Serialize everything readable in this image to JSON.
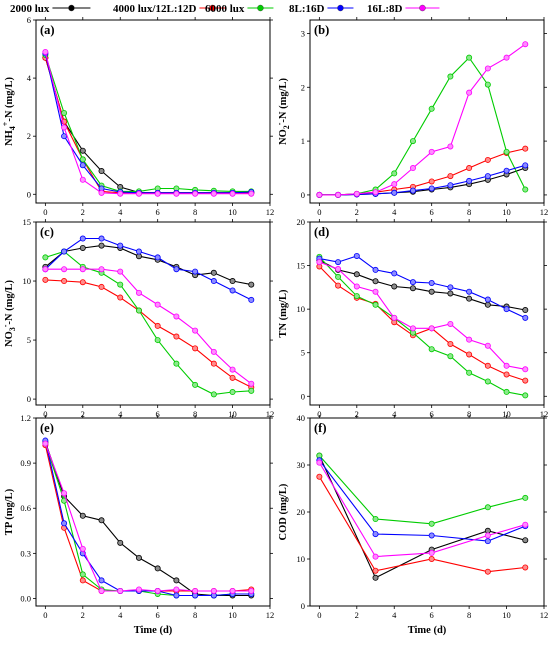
{
  "legend": [
    {
      "name": "2000 lux",
      "color": "#000000"
    },
    {
      "name": "4000 lux/12L:12D",
      "color": "#ff0000"
    },
    {
      "name": "6000 lux",
      "color": "#00cc00"
    },
    {
      "name": "8L:16D",
      "color": "#0000ff"
    },
    {
      "name": "16L:8D",
      "color": "#ff00ff"
    }
  ],
  "colors": [
    "#000000",
    "#ff0000",
    "#00cc00",
    "#0000ff",
    "#ff00ff"
  ],
  "chart_data": [
    {
      "panel": "(a)",
      "type": "line",
      "ylabel_main": "NH",
      "ylabel_sub": "4",
      "ylabel_sup": "+",
      "ylabel_rest": "-N (mg/L)",
      "xlim": [
        -0.5,
        12
      ],
      "ylim": [
        -0.3,
        6
      ],
      "xticks": [
        0,
        2,
        4,
        6,
        8,
        10,
        12
      ],
      "yticks": [
        0,
        2,
        4,
        6
      ],
      "x": [
        0,
        1,
        2,
        3,
        4,
        5,
        6,
        7,
        8,
        9,
        10,
        11
      ],
      "series": [
        {
          "values": [
            4.7,
            2.5,
            1.5,
            0.8,
            0.25,
            0.06,
            0.05,
            0.05,
            0.05,
            0.05,
            0.05,
            0.05
          ]
        },
        {
          "values": [
            4.7,
            2.5,
            1.2,
            0.1,
            0.05,
            0.05,
            0.05,
            0.05,
            0.05,
            0.05,
            0.05,
            0.05
          ]
        },
        {
          "values": [
            4.8,
            2.8,
            1.2,
            0.3,
            0.1,
            0.1,
            0.2,
            0.2,
            0.15,
            0.12,
            0.1,
            0.1
          ]
        },
        {
          "values": [
            4.85,
            2.0,
            1.0,
            0.2,
            0.08,
            0.05,
            0.05,
            0.05,
            0.05,
            0.05,
            0.05,
            0.08
          ]
        },
        {
          "values": [
            4.9,
            2.3,
            0.5,
            0.05,
            0.02,
            0.02,
            0.02,
            0.02,
            0.02,
            0.02,
            0.02,
            0.02
          ]
        }
      ]
    },
    {
      "panel": "(b)",
      "type": "line",
      "ylabel_main": "NO",
      "ylabel_sub": "2",
      "ylabel_sup": "-",
      "ylabel_rest": "-N (mg/L)",
      "xlim": [
        -0.5,
        12
      ],
      "ylim": [
        -0.15,
        3.25
      ],
      "xticks": [
        0,
        2,
        4,
        6,
        8,
        10,
        12
      ],
      "yticks": [
        0,
        1,
        2,
        3
      ],
      "x": [
        0,
        1,
        2,
        3,
        4,
        5,
        6,
        7,
        8,
        9,
        10,
        11
      ],
      "series": [
        {
          "values": [
            0,
            0,
            0.01,
            0.02,
            0.04,
            0.06,
            0.1,
            0.14,
            0.2,
            0.28,
            0.38,
            0.5
          ]
        },
        {
          "values": [
            0,
            0,
            0.02,
            0.05,
            0.1,
            0.15,
            0.25,
            0.35,
            0.5,
            0.65,
            0.78,
            0.86
          ]
        },
        {
          "values": [
            0,
            0,
            0.02,
            0.1,
            0.4,
            1.0,
            1.6,
            2.2,
            2.55,
            2.05,
            0.8,
            0.1
          ]
        },
        {
          "values": [
            0,
            0,
            0.01,
            0.02,
            0.04,
            0.08,
            0.12,
            0.18,
            0.26,
            0.35,
            0.45,
            0.55
          ]
        },
        {
          "values": [
            0,
            0,
            0.02,
            0.05,
            0.2,
            0.5,
            0.8,
            0.9,
            1.9,
            2.35,
            2.55,
            2.8
          ]
        }
      ]
    },
    {
      "panel": "(c)",
      "type": "line",
      "ylabel_main": "NO",
      "ylabel_sub": "3",
      "ylabel_sup": "-",
      "ylabel_rest": "-N (mg/L)",
      "xlim": [
        -0.5,
        12
      ],
      "ylim": [
        -0.5,
        15
      ],
      "xticks": [
        0,
        2,
        4,
        6,
        8,
        10,
        12
      ],
      "yticks": [
        0,
        5,
        10,
        15
      ],
      "x": [
        0,
        1,
        2,
        3,
        4,
        5,
        6,
        7,
        8,
        9,
        10,
        11
      ],
      "series": [
        {
          "values": [
            11.2,
            12.5,
            12.8,
            13.0,
            12.8,
            12.1,
            11.8,
            11.2,
            10.5,
            10.7,
            10.0,
            9.7
          ]
        },
        {
          "values": [
            10.1,
            10.0,
            9.9,
            9.5,
            8.6,
            7.5,
            6.2,
            5.3,
            4.3,
            3.0,
            1.8,
            1.0
          ]
        },
        {
          "values": [
            12.0,
            12.5,
            11.2,
            10.7,
            9.7,
            7.5,
            5.0,
            3.0,
            1.2,
            0.4,
            0.6,
            0.7
          ]
        },
        {
          "values": [
            11.0,
            12.5,
            13.6,
            13.6,
            13.0,
            12.5,
            12.0,
            11.0,
            10.8,
            10.0,
            9.2,
            8.4
          ]
        },
        {
          "values": [
            11.0,
            11.0,
            11.0,
            11.0,
            10.8,
            9.0,
            8.0,
            7.0,
            5.8,
            4.0,
            2.5,
            1.3
          ]
        }
      ]
    },
    {
      "panel": "(d)",
      "type": "line",
      "ylabel_main": "TN (mg/L)",
      "xlim": [
        -0.5,
        12
      ],
      "ylim": [
        -1,
        20
      ],
      "xticks": [
        0,
        2,
        4,
        6,
        8,
        10,
        12
      ],
      "yticks": [
        0,
        5,
        10,
        15,
        20
      ],
      "x": [
        0,
        1,
        2,
        3,
        4,
        5,
        6,
        7,
        8,
        9,
        10,
        11
      ],
      "series": [
        {
          "values": [
            15.6,
            14.5,
            14.0,
            13.2,
            12.6,
            12.4,
            12.0,
            11.8,
            11.2,
            10.5,
            10.3,
            9.9
          ]
        },
        {
          "values": [
            14.9,
            12.7,
            11.3,
            10.6,
            8.5,
            7.0,
            7.8,
            6.0,
            4.8,
            3.5,
            2.5,
            1.8
          ]
        },
        {
          "values": [
            16.0,
            13.7,
            11.5,
            10.5,
            9.0,
            7.3,
            5.4,
            4.6,
            2.7,
            1.7,
            0.5,
            0.1
          ]
        },
        {
          "values": [
            15.8,
            15.4,
            16.1,
            14.5,
            14.1,
            13.1,
            13.0,
            12.5,
            12.0,
            11.1,
            10.0,
            9.0
          ]
        },
        {
          "values": [
            15.4,
            14.6,
            12.6,
            12.0,
            9.0,
            7.8,
            7.8,
            8.3,
            6.5,
            5.8,
            3.5,
            3.1
          ]
        }
      ]
    },
    {
      "panel": "(e)",
      "type": "line",
      "ylabel_main": "TP (mg/L)",
      "xlim": [
        -0.5,
        12
      ],
      "ylim": [
        -0.05,
        1.2
      ],
      "xticks": [
        0,
        2,
        4,
        6,
        8,
        10,
        12
      ],
      "yticks": [
        0.0,
        0.3,
        0.6,
        0.9,
        1.2
      ],
      "x": [
        0,
        1,
        2,
        3,
        4,
        5,
        6,
        7,
        8,
        9,
        10,
        11
      ],
      "series": [
        {
          "values": [
            1.04,
            0.68,
            0.55,
            0.52,
            0.37,
            0.27,
            0.2,
            0.12,
            0.03,
            0.02,
            0.02,
            0.02
          ]
        },
        {
          "values": [
            1.02,
            0.47,
            0.12,
            0.05,
            0.05,
            0.05,
            0.05,
            0.05,
            0.05,
            0.05,
            0.05,
            0.06
          ]
        },
        {
          "values": [
            1.03,
            0.65,
            0.16,
            0.06,
            0.05,
            0.05,
            0.03,
            0.02,
            0.02,
            0.02,
            0.03,
            0.03
          ]
        },
        {
          "values": [
            1.05,
            0.5,
            0.3,
            0.12,
            0.05,
            0.05,
            0.05,
            0.02,
            0.02,
            0.02,
            0.03,
            0.03
          ]
        },
        {
          "values": [
            1.03,
            0.7,
            0.33,
            0.05,
            0.05,
            0.06,
            0.05,
            0.06,
            0.05,
            0.05,
            0.05,
            0.05
          ]
        }
      ]
    },
    {
      "panel": "(f)",
      "type": "line",
      "ylabel_main": "COD (mg/L)",
      "xlim": [
        -0.5,
        12
      ],
      "ylim": [
        0,
        40
      ],
      "xticks": [
        0,
        2,
        4,
        6,
        8,
        10,
        12
      ],
      "yticks": [
        0,
        10,
        20,
        30,
        40
      ],
      "x": [
        0,
        3,
        6,
        9,
        11
      ],
      "series": [
        {
          "values": [
            32.0,
            6.0,
            12.0,
            16.0,
            14.0
          ]
        },
        {
          "values": [
            27.5,
            7.5,
            10.0,
            7.3,
            8.2
          ]
        },
        {
          "values": [
            32.0,
            18.5,
            17.5,
            21.0,
            23.0
          ]
        },
        {
          "values": [
            31.0,
            15.3,
            15.0,
            13.8,
            17.0
          ]
        },
        {
          "values": [
            30.5,
            10.5,
            11.3,
            15.0,
            17.3
          ]
        }
      ]
    }
  ],
  "xlabel": "Time (d)"
}
